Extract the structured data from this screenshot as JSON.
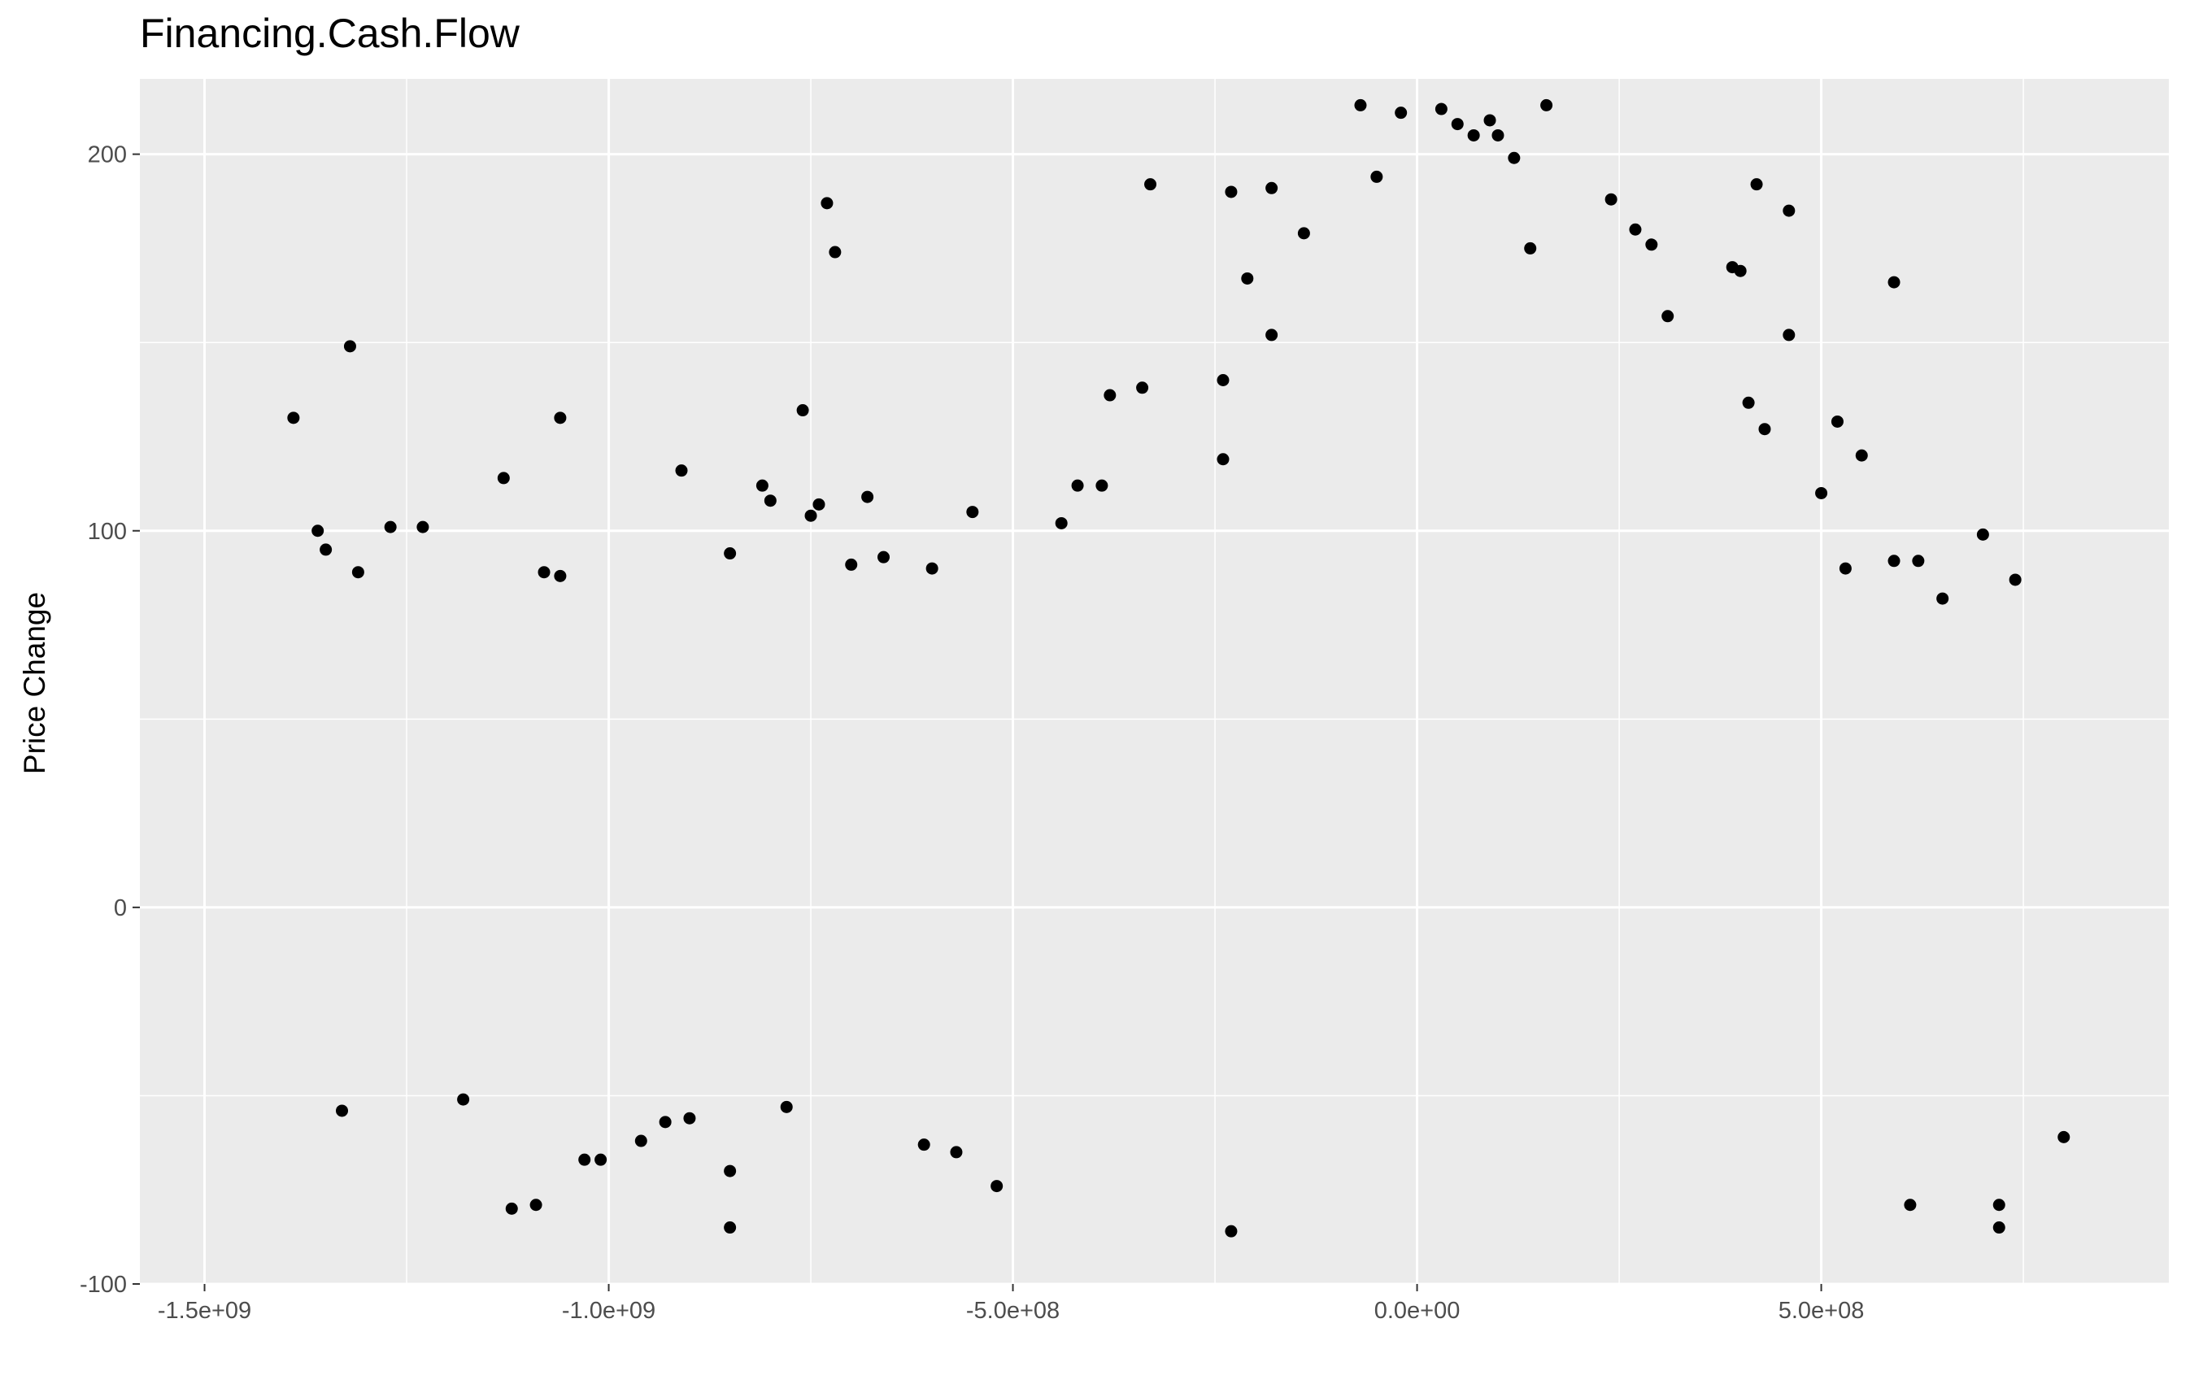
{
  "chart_data": {
    "type": "scatter",
    "title": "Financing.Cash.Flow",
    "xlabel": "",
    "ylabel": "Price Change",
    "xlim": [
      -1580000000.0,
      930000000.0
    ],
    "ylim": [
      -100,
      220
    ],
    "x_ticks": [
      {
        "value": -1500000000.0,
        "label": "-1.5e+09"
      },
      {
        "value": -1000000000.0,
        "label": "-1.0e+09"
      },
      {
        "value": -500000000.0,
        "label": "-5.0e+08"
      },
      {
        "value": 0,
        "label": "0.0e+00"
      },
      {
        "value": 500000000.0,
        "label": "5.0e+08"
      }
    ],
    "y_ticks": [
      {
        "value": -100,
        "label": "-100"
      },
      {
        "value": 0,
        "label": "0"
      },
      {
        "value": 100,
        "label": "100"
      },
      {
        "value": 200,
        "label": "200"
      }
    ],
    "grid": true,
    "legend": "none",
    "colors": {
      "panel": "#ebebeb",
      "grid": "#ffffff",
      "point": "#000000"
    },
    "points": [
      [
        -1320000000.0,
        149
      ],
      [
        -1390000000.0,
        130
      ],
      [
        -1060000000.0,
        130
      ],
      [
        -1130000000.0,
        114
      ],
      [
        -1360000000.0,
        100
      ],
      [
        -1350000000.0,
        95
      ],
      [
        -1310000000.0,
        89
      ],
      [
        -1270000000.0,
        101
      ],
      [
        -1230000000.0,
        101
      ],
      [
        -1080000000.0,
        89
      ],
      [
        -1060000000.0,
        88
      ],
      [
        -910000000.0,
        116
      ],
      [
        -850000000.0,
        94
      ],
      [
        -810000000.0,
        112
      ],
      [
        -800000000.0,
        108
      ],
      [
        -760000000.0,
        132
      ],
      [
        -750000000.0,
        104
      ],
      [
        -740000000.0,
        107
      ],
      [
        -730000000.0,
        187
      ],
      [
        -720000000.0,
        174
      ],
      [
        -680000000.0,
        109
      ],
      [
        -700000000.0,
        91
      ],
      [
        -660000000.0,
        93
      ],
      [
        -600000000.0,
        90
      ],
      [
        -550000000.0,
        105
      ],
      [
        -440000000.0,
        102
      ],
      [
        -420000000.0,
        112
      ],
      [
        -390000000.0,
        112
      ],
      [
        -380000000.0,
        136
      ],
      [
        -340000000.0,
        138
      ],
      [
        -330000000.0,
        192
      ],
      [
        -240000000.0,
        140
      ],
      [
        -240000000.0,
        119
      ],
      [
        -230000000.0,
        190
      ],
      [
        -210000000.0,
        167
      ],
      [
        -180000000.0,
        191
      ],
      [
        -180000000.0,
        152
      ],
      [
        -140000000.0,
        179
      ],
      [
        -70000000.0,
        213
      ],
      [
        -50000000.0,
        194
      ],
      [
        -20000000.0,
        211
      ],
      [
        30000000.0,
        212
      ],
      [
        50000000.0,
        208
      ],
      [
        70000000.0,
        205
      ],
      [
        90000000.0,
        209
      ],
      [
        100000000.0,
        205
      ],
      [
        120000000.0,
        199
      ],
      [
        140000000.0,
        175
      ],
      [
        160000000.0,
        213
      ],
      [
        240000000.0,
        188
      ],
      [
        270000000.0,
        180
      ],
      [
        290000000.0,
        176
      ],
      [
        310000000.0,
        157
      ],
      [
        390000000.0,
        170
      ],
      [
        400000000.0,
        169
      ],
      [
        420000000.0,
        192
      ],
      [
        460000000.0,
        185
      ],
      [
        460000000.0,
        152
      ],
      [
        430000000.0,
        127
      ],
      [
        410000000.0,
        134
      ],
      [
        520000000.0,
        129
      ],
      [
        550000000.0,
        120
      ],
      [
        590000000.0,
        166
      ],
      [
        500000000.0,
        110
      ],
      [
        530000000.0,
        90
      ],
      [
        590000000.0,
        92
      ],
      [
        620000000.0,
        92
      ],
      [
        650000000.0,
        82
      ],
      [
        700000000.0,
        99
      ],
      [
        740000000.0,
        87
      ],
      [
        -1010000000.0,
        -67
      ],
      [
        -1030000000.0,
        -67
      ],
      [
        -1090000000.0,
        -79
      ],
      [
        -1120000000.0,
        -80
      ],
      [
        -850000000.0,
        -70
      ],
      [
        -850000000.0,
        -85
      ],
      [
        -520000000.0,
        -74
      ],
      [
        -230000000.0,
        -86
      ],
      [
        720000000.0,
        -85
      ],
      [
        720000000.0,
        -79
      ],
      [
        800000000.0,
        -61
      ],
      [
        610000000.0,
        -79
      ],
      [
        -960000000.0,
        -62
      ],
      [
        -930000000.0,
        -57
      ],
      [
        -900000000.0,
        -56
      ],
      [
        -1330000000.0,
        -54
      ],
      [
        -1180000000.0,
        -51
      ],
      [
        -780000000.0,
        -53
      ],
      [
        -610000000.0,
        -63
      ],
      [
        -570000000.0,
        -65
      ]
    ]
  }
}
